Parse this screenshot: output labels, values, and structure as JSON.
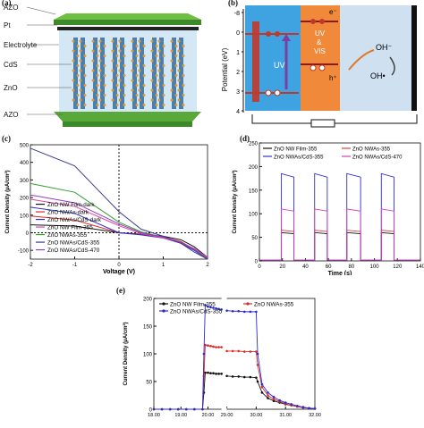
{
  "panel_a": {
    "label": "(a)",
    "layers": [
      "AZO",
      "Pt",
      "Electrolyte",
      "CdS",
      "ZnO",
      "AZO"
    ]
  },
  "panel_b": {
    "label": "(b)",
    "ylabel": "Potential (eV)",
    "yticks": [
      "-8",
      "0",
      "1",
      "2",
      "3",
      "4"
    ],
    "uv": "UV",
    "uvvis": [
      "UV",
      "&",
      "VIS"
    ],
    "electron": "e⁻",
    "hole": "h⁺",
    "oh1": "OH⁻",
    "oh2": "OH•"
  },
  "chart_data": [
    {
      "panel": "(c)",
      "type": "line",
      "xlabel": "Voltage (V)",
      "ylabel": "Current Density (μA/cm²)",
      "xlim": [
        -2,
        2
      ],
      "ylim": [
        -150,
        500
      ],
      "xticks": [
        "-2",
        "-1",
        "0",
        "1",
        "2"
      ],
      "yticks": [
        "-100",
        "0",
        "100",
        "200",
        "300",
        "400",
        "500"
      ],
      "series": [
        {
          "name": "ZnO NW Film-dark",
          "color": "#111111",
          "x": [
            -2,
            -1,
            0,
            0.5,
            1,
            1.4,
            1.7,
            2
          ],
          "y": [
            45,
            38,
            0,
            -8,
            -20,
            -40,
            -80,
            -140
          ]
        },
        {
          "name": "ZnO NWAs-dark",
          "color": "#d62b2b",
          "x": [
            -2,
            -1,
            0,
            0.5,
            1,
            1.4,
            1.7,
            2
          ],
          "y": [
            95,
            72,
            0,
            -10,
            -25,
            -50,
            -95,
            -150
          ]
        },
        {
          "name": "ZnO NWAs/CdS-dark",
          "color": "#2a2ad0",
          "x": [
            -2,
            -1,
            0,
            0.5,
            1,
            1.4,
            1.7,
            2
          ],
          "y": [
            145,
            110,
            0,
            -12,
            -30,
            -60,
            -100,
            -150
          ]
        },
        {
          "name": "ZnO NW Film-355",
          "color": "#e040a0",
          "x": [
            -2,
            -1,
            0,
            0.5,
            1,
            1.4,
            1.7,
            2
          ],
          "y": [
            190,
            150,
            40,
            -5,
            -30,
            -55,
            -90,
            -140
          ]
        },
        {
          "name": "ZnO NWAs-355",
          "color": "#30a030",
          "x": [
            -2,
            -1,
            0,
            0.5,
            1,
            1.4,
            1.7,
            2
          ],
          "y": [
            280,
            230,
            60,
            5,
            -25,
            -55,
            -95,
            -150
          ]
        },
        {
          "name": "ZnO NWAs/CdS-355",
          "color": "#3a3a90",
          "x": [
            -2,
            -1,
            0,
            0.5,
            1,
            1.4,
            1.7,
            2
          ],
          "y": [
            480,
            380,
            120,
            20,
            -20,
            -60,
            -110,
            -150
          ]
        },
        {
          "name": "ZnO NWAs/CdS-470",
          "color": "#9040c0",
          "x": [
            -2,
            -1,
            0,
            0.5,
            1,
            1.4,
            1.7,
            2
          ],
          "y": [
            215,
            170,
            50,
            0,
            -25,
            -55,
            -95,
            -145
          ]
        }
      ]
    },
    {
      "panel": "(d)",
      "type": "line",
      "xlabel": "Time (s)",
      "ylabel": "Current Density (μA/cm²)",
      "xlim": [
        0,
        140
      ],
      "ylim": [
        0,
        250
      ],
      "xticks": [
        "0",
        "20",
        "40",
        "60",
        "80",
        "100",
        "120",
        "140"
      ],
      "yticks": [
        "0",
        "50",
        "100",
        "150",
        "200",
        "250"
      ],
      "on_intervals": [
        [
          19,
          30
        ],
        [
          48,
          59
        ],
        [
          76,
          88
        ],
        [
          106,
          117
        ]
      ],
      "series": [
        {
          "name": "ZnO NW Film-355",
          "color": "#111111",
          "on_level": 60
        },
        {
          "name": "ZnO NWAs-355",
          "color": "#e04040",
          "on_level": 65
        },
        {
          "name": "ZnO NWAs/CdS-355",
          "color": "#3030d0",
          "on_level": 185
        },
        {
          "name": "ZnO NWAs/CdS-470",
          "color": "#d040c0",
          "on_level": 110
        }
      ]
    },
    {
      "panel": "(e)",
      "type": "line",
      "xlabel": "",
      "ylabel": "Current Density (μA/cm²)",
      "ylim": [
        0,
        200
      ],
      "xticks": [
        "18.00",
        "19.00",
        "20.00",
        "29.00",
        "30.00",
        "31.00",
        "32.00"
      ],
      "yticks": [
        "0",
        "50",
        "100",
        "150",
        "200"
      ],
      "series": [
        {
          "name": "ZnO NW Film-355",
          "color": "#111111",
          "x": [
            18.0,
            18.3,
            18.6,
            18.9,
            19.2,
            19.5,
            19.8,
            19.85,
            19.9,
            20.0,
            20.1,
            20.2,
            20.3,
            20.4,
            20.5,
            29.0,
            29.2,
            29.4,
            29.6,
            29.8,
            30.0,
            30.05,
            30.2,
            30.4,
            30.6,
            30.8,
            31.0,
            31.2,
            31.4,
            31.6,
            31.8,
            32.0
          ],
          "y": [
            0,
            0,
            0,
            0,
            0,
            0,
            0,
            30,
            66,
            66,
            65,
            65,
            64,
            64,
            64,
            60,
            59,
            59,
            58,
            58,
            57,
            50,
            30,
            20,
            15,
            12,
            9,
            7,
            5,
            3,
            2,
            1
          ]
        },
        {
          "name": "ZnO NWAs-355",
          "color": "#d62b2b",
          "x": [
            18.0,
            18.3,
            18.6,
            18.9,
            19.2,
            19.5,
            19.8,
            19.85,
            19.9,
            20.0,
            20.1,
            20.2,
            20.3,
            20.4,
            20.5,
            29.0,
            29.2,
            29.4,
            29.6,
            29.8,
            30.0,
            30.05,
            30.2,
            30.4,
            30.6,
            30.8,
            31.0,
            31.2,
            31.4,
            31.6,
            31.8,
            32.0
          ],
          "y": [
            0,
            0,
            0,
            0,
            0,
            0,
            0,
            60,
            116,
            115,
            114,
            113,
            112,
            112,
            112,
            105,
            105,
            105,
            104,
            104,
            104,
            80,
            40,
            25,
            18,
            14,
            10,
            7,
            5,
            3,
            2,
            1
          ]
        },
        {
          "name": "ZnO NWAs/CdS-355",
          "color": "#2a2ad0",
          "x": [
            18.0,
            18.3,
            18.6,
            18.9,
            19.2,
            19.5,
            19.8,
            19.85,
            19.9,
            20.0,
            20.1,
            20.2,
            20.3,
            20.4,
            20.5,
            29.0,
            29.2,
            29.4,
            29.6,
            29.8,
            30.0,
            30.05,
            30.2,
            30.4,
            30.6,
            30.8,
            31.0,
            31.2,
            31.4,
            31.6,
            31.8,
            32.0
          ],
          "y": [
            0,
            0,
            0,
            0,
            0,
            0,
            0,
            100,
            188,
            185,
            184,
            183,
            182,
            181,
            180,
            178,
            177,
            177,
            176,
            176,
            176,
            100,
            45,
            30,
            22,
            16,
            12,
            9,
            6,
            4,
            2,
            1
          ]
        }
      ]
    }
  ],
  "labels": {
    "c": "(c)",
    "d": "(d)",
    "e": "(e)"
  }
}
